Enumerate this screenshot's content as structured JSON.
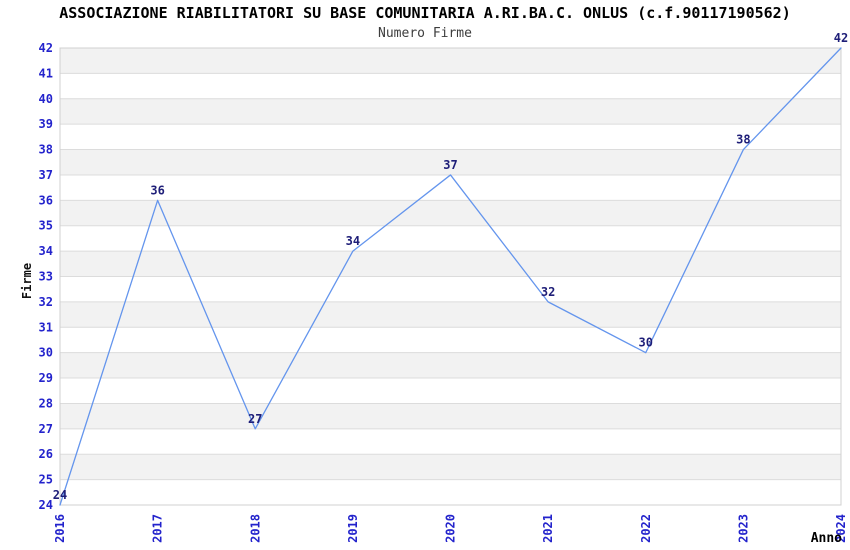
{
  "chart_data": {
    "type": "line",
    "title": "ASSOCIAZIONE RIABILITATORI SU BASE COMUNITARIA A.RI.BA.C. ONLUS (c.f.90117190562)",
    "subtitle": "Numero Firme",
    "xlabel": "Anno",
    "ylabel": "Firme",
    "categories": [
      "2016",
      "2017",
      "2018",
      "2019",
      "2020",
      "2021",
      "2022",
      "2023",
      "2024"
    ],
    "series": [
      {
        "name": "Numero Firme",
        "values": [
          24,
          36,
          27,
          34,
          37,
          32,
          30,
          38,
          42
        ]
      }
    ],
    "ylim": [
      24,
      42
    ],
    "ytick_step": 1,
    "grid": "horizontal-bands",
    "legend_position": "none",
    "point_labels_visible": true,
    "colors": {
      "line": "#6495ed",
      "tick_label": "#2323cc",
      "point_label": "#1e1e78",
      "band_fill": "#f2f2f2",
      "gridline": "#dcdcdc",
      "plot_border": "#d0d0d0",
      "background": "#ffffff"
    }
  }
}
